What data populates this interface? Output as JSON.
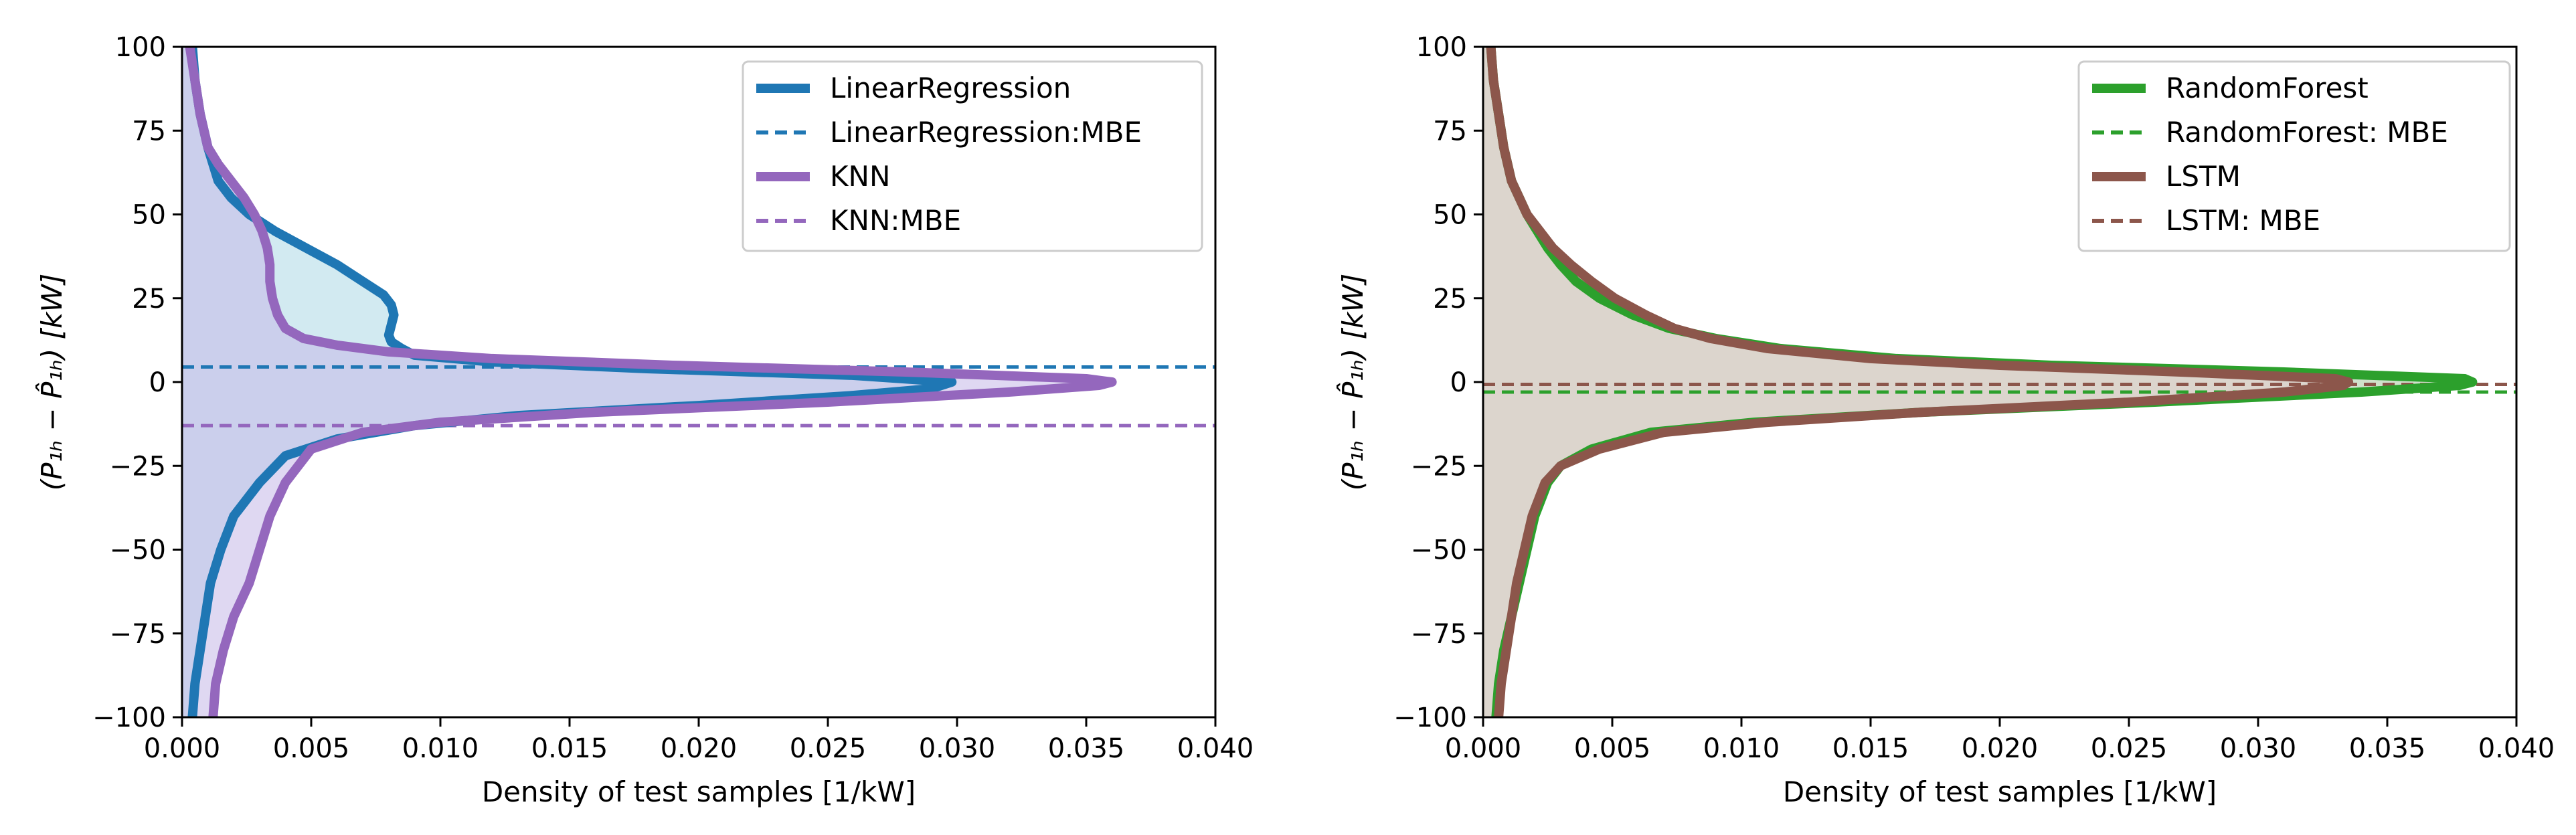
{
  "chart_data": [
    {
      "type": "line",
      "panel": "left",
      "xlabel": "Density of test samples [1/kW]",
      "ylabel": "(P₁ₕ − P̂₁ₕ) [kW]",
      "xlim": [
        0.0,
        0.04
      ],
      "ylim": [
        -100,
        100
      ],
      "xticks": [
        0.0,
        0.005,
        0.01,
        0.015,
        0.02,
        0.025,
        0.03,
        0.035,
        0.04
      ],
      "xtick_labels": [
        "0.000",
        "0.005",
        "0.010",
        "0.015",
        "0.020",
        "0.025",
        "0.030",
        "0.035",
        "0.040"
      ],
      "yticks": [
        -100,
        -75,
        -50,
        -25,
        0,
        25,
        50,
        75,
        100
      ],
      "ytick_labels": [
        "−100",
        "−75",
        "−50",
        "−25",
        "0",
        "25",
        "50",
        "75",
        "100"
      ],
      "legend_position": "top-right",
      "series": [
        {
          "name": "LinearRegression",
          "color": "#1f77b4",
          "fill": "#add8e6",
          "mbe_name": "LinearRegression:MBE",
          "mbe": 4.5,
          "points": [
            [
              -100,
              0.0004
            ],
            [
              -90,
              0.0005
            ],
            [
              -80,
              0.0007
            ],
            [
              -70,
              0.0009
            ],
            [
              -60,
              0.0011
            ],
            [
              -50,
              0.0015
            ],
            [
              -40,
              0.002
            ],
            [
              -30,
              0.003
            ],
            [
              -22,
              0.004
            ],
            [
              -17,
              0.006
            ],
            [
              -13,
              0.009
            ],
            [
              -10,
              0.013
            ],
            [
              -7,
              0.02
            ],
            [
              -4,
              0.026
            ],
            [
              -2,
              0.029
            ],
            [
              0,
              0.0298
            ],
            [
              2,
              0.026
            ],
            [
              4,
              0.018
            ],
            [
              6,
              0.012
            ],
            [
              8,
              0.009
            ],
            [
              10,
              0.0085
            ],
            [
              12,
              0.0081
            ],
            [
              14,
              0.008
            ],
            [
              17,
              0.0081
            ],
            [
              20,
              0.0082
            ],
            [
              23,
              0.0081
            ],
            [
              26,
              0.0078
            ],
            [
              30,
              0.007
            ],
            [
              35,
              0.006
            ],
            [
              40,
              0.0048
            ],
            [
              45,
              0.0036
            ],
            [
              50,
              0.0026
            ],
            [
              55,
              0.0019
            ],
            [
              60,
              0.0014
            ],
            [
              70,
              0.001
            ],
            [
              80,
              0.0007
            ],
            [
              90,
              0.0005
            ],
            [
              100,
              0.0004
            ]
          ]
        },
        {
          "name": "KNN",
          "color": "#9467bd",
          "fill": "#c5b8e8",
          "mbe_name": "KNN:MBE",
          "mbe": -13,
          "points": [
            [
              -100,
              0.0012
            ],
            [
              -90,
              0.0013
            ],
            [
              -80,
              0.0016
            ],
            [
              -70,
              0.002
            ],
            [
              -60,
              0.0026
            ],
            [
              -50,
              0.003
            ],
            [
              -40,
              0.0034
            ],
            [
              -30,
              0.004
            ],
            [
              -20,
              0.005
            ],
            [
              -15,
              0.007
            ],
            [
              -12,
              0.01
            ],
            [
              -9,
              0.016
            ],
            [
              -6,
              0.025
            ],
            [
              -3,
              0.032
            ],
            [
              -1,
              0.0355
            ],
            [
              0,
              0.036
            ],
            [
              1,
              0.035
            ],
            [
              3,
              0.028
            ],
            [
              5,
              0.019
            ],
            [
              7,
              0.012
            ],
            [
              9,
              0.008
            ],
            [
              11,
              0.006
            ],
            [
              13,
              0.0047
            ],
            [
              16,
              0.004
            ],
            [
              20,
              0.0037
            ],
            [
              25,
              0.0035
            ],
            [
              30,
              0.0034
            ],
            [
              35,
              0.0034
            ],
            [
              40,
              0.0033
            ],
            [
              45,
              0.0031
            ],
            [
              50,
              0.0028
            ],
            [
              55,
              0.0024
            ],
            [
              60,
              0.0019
            ],
            [
              65,
              0.0014
            ],
            [
              70,
              0.001
            ],
            [
              80,
              0.0007
            ],
            [
              90,
              0.0005
            ],
            [
              100,
              0.0003
            ]
          ]
        }
      ]
    },
    {
      "type": "line",
      "panel": "right",
      "xlabel": "Density of test samples [1/kW]",
      "ylabel": "(P₁ₕ − P̂₁ₕ) [kW]",
      "xlim": [
        0.0,
        0.04
      ],
      "ylim": [
        -100,
        100
      ],
      "xticks": [
        0.0,
        0.005,
        0.01,
        0.015,
        0.02,
        0.025,
        0.03,
        0.035,
        0.04
      ],
      "xtick_labels": [
        "0.000",
        "0.005",
        "0.010",
        "0.015",
        "0.020",
        "0.025",
        "0.030",
        "0.035",
        "0.040"
      ],
      "yticks": [
        -100,
        -75,
        -50,
        -25,
        0,
        25,
        50,
        75,
        100
      ],
      "ytick_labels": [
        "−100",
        "−75",
        "−50",
        "−25",
        "0",
        "25",
        "50",
        "75",
        "100"
      ],
      "legend_position": "top-right",
      "series": [
        {
          "name": "RandomForest",
          "color": "#2ca02c",
          "fill": "#a8c8a0",
          "mbe_name": "RandomForest: MBE",
          "mbe": -3,
          "points": [
            [
              -100,
              0.0005
            ],
            [
              -90,
              0.0006
            ],
            [
              -80,
              0.0008
            ],
            [
              -70,
              0.0011
            ],
            [
              -60,
              0.0014
            ],
            [
              -50,
              0.0017
            ],
            [
              -40,
              0.002
            ],
            [
              -30,
              0.0025
            ],
            [
              -25,
              0.003
            ],
            [
              -20,
              0.0042
            ],
            [
              -15,
              0.0065
            ],
            [
              -12,
              0.0105
            ],
            [
              -9,
              0.017
            ],
            [
              -6,
              0.026
            ],
            [
              -3,
              0.034
            ],
            [
              -1,
              0.0378
            ],
            [
              0,
              0.0383
            ],
            [
              1,
              0.038
            ],
            [
              3,
              0.031
            ],
            [
              5,
              0.022
            ],
            [
              7,
              0.016
            ],
            [
              10,
              0.0115
            ],
            [
              13,
              0.009
            ],
            [
              16,
              0.0072
            ],
            [
              20,
              0.0058
            ],
            [
              25,
              0.0045
            ],
            [
              30,
              0.0036
            ],
            [
              35,
              0.003
            ],
            [
              40,
              0.0025
            ],
            [
              45,
              0.0021
            ],
            [
              50,
              0.0017
            ],
            [
              55,
              0.0014
            ],
            [
              60,
              0.0011
            ],
            [
              70,
              0.0008
            ],
            [
              80,
              0.0006
            ],
            [
              90,
              0.0004
            ],
            [
              100,
              0.0003
            ]
          ]
        },
        {
          "name": "LSTM",
          "color": "#8c564b",
          "fill": "#e8ccd0",
          "mbe_name": "LSTM: MBE",
          "mbe": -0.7,
          "points": [
            [
              -100,
              0.0006
            ],
            [
              -90,
              0.0007
            ],
            [
              -80,
              0.0009
            ],
            [
              -70,
              0.0011
            ],
            [
              -60,
              0.0013
            ],
            [
              -50,
              0.0016
            ],
            [
              -40,
              0.0019
            ],
            [
              -30,
              0.0024
            ],
            [
              -25,
              0.003
            ],
            [
              -20,
              0.0045
            ],
            [
              -15,
              0.007
            ],
            [
              -12,
              0.011
            ],
            [
              -9,
              0.017
            ],
            [
              -6,
              0.025
            ],
            [
              -3,
              0.031
            ],
            [
              -1,
              0.0333
            ],
            [
              0,
              0.0335
            ],
            [
              1,
              0.033
            ],
            [
              3,
              0.027
            ],
            [
              5,
              0.02
            ],
            [
              7,
              0.015
            ],
            [
              10,
              0.011
            ],
            [
              13,
              0.0088
            ],
            [
              16,
              0.0074
            ],
            [
              20,
              0.0063
            ],
            [
              25,
              0.0051
            ],
            [
              30,
              0.0042
            ],
            [
              35,
              0.0034
            ],
            [
              40,
              0.0027
            ],
            [
              45,
              0.0022
            ],
            [
              50,
              0.0017
            ],
            [
              55,
              0.0014
            ],
            [
              60,
              0.0011
            ],
            [
              70,
              0.0008
            ],
            [
              80,
              0.0006
            ],
            [
              90,
              0.0004
            ],
            [
              100,
              0.0003
            ]
          ]
        }
      ]
    }
  ]
}
